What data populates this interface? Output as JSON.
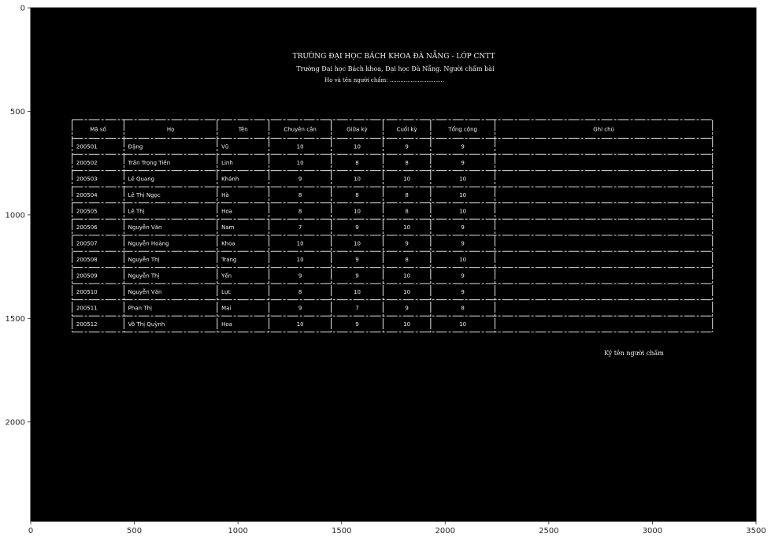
{
  "chart_data": {
    "type": "image",
    "xlim": [
      0,
      3500
    ],
    "ylim": [
      2480,
      0
    ],
    "x_ticks": [
      0,
      500,
      1000,
      1500,
      2000,
      2500,
      3000,
      3500
    ],
    "y_ticks": [
      0,
      500,
      1000,
      1500,
      2000
    ],
    "x_tick_labels": [
      "0",
      "500",
      "1000",
      "1500",
      "2000",
      "2500",
      "3000",
      "3500"
    ],
    "y_tick_labels": [
      "0",
      "500",
      "1000",
      "1500",
      "2000"
    ],
    "background": "#000000",
    "foreground": "#ffffff",
    "header_lines": [
      "TRƯỜNG ĐẠI HỌC BÁCH KHOA ĐÀ NẴNG - LỚP CNTT",
      "Trường Đại học Bách khoa, Đại học Đà Nẵng. Người chấm bài",
      "Họ và tên người chấm: ..............................."
    ],
    "table": {
      "columns": [
        "Mã số",
        "Họ",
        "Tên",
        "Chuyên cần",
        "Giữa kỳ",
        "Cuối kỳ",
        "Tổng cộng",
        "Ghi chú"
      ],
      "rows": [
        [
          "200501",
          "Đặng",
          "Vũ",
          "10",
          "10",
          "9",
          "9",
          ""
        ],
        [
          "200502",
          "Trần Trọng Tiến",
          "Linh",
          "10",
          "8",
          "8",
          "9",
          ""
        ],
        [
          "200503",
          "Lê Quang",
          "Khánh",
          "9",
          "10",
          "10",
          "10",
          ""
        ],
        [
          "200504",
          "Lê Thị Ngọc",
          "Hà",
          "8",
          "8",
          "8",
          "10",
          ""
        ],
        [
          "200505",
          "Lê Thị",
          "Hoa",
          "8",
          "10",
          "8",
          "10",
          ""
        ],
        [
          "200506",
          "Nguyễn Văn",
          "Nam",
          "7",
          "9",
          "10",
          "9",
          ""
        ],
        [
          "200507",
          "Nguyễn Hoàng",
          "Khoa",
          "10",
          "10",
          "9",
          "9",
          ""
        ],
        [
          "200508",
          "Nguyễn Thị",
          "Trang",
          "10",
          "9",
          "8",
          "10",
          ""
        ],
        [
          "200509",
          "Nguyễn Thị",
          "Yến",
          "9",
          "9",
          "10",
          "9",
          ""
        ],
        [
          "200510",
          "Nguyễn Văn",
          "Lực",
          "8",
          "10",
          "10",
          "9",
          ""
        ],
        [
          "200511",
          "Phan Thị",
          "Mai",
          "9",
          "7",
          "9",
          "8",
          ""
        ],
        [
          "200512",
          "Võ Thị Quỳnh",
          "Hoa",
          "10",
          "9",
          "10",
          "10",
          ""
        ]
      ]
    },
    "signature_line": "Ký tên người chấm"
  }
}
